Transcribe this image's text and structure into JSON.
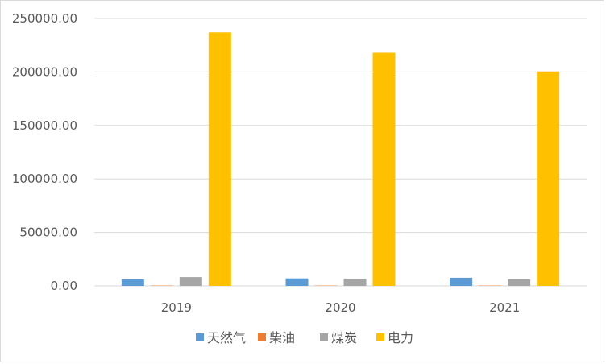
{
  "chart_data": {
    "type": "bar",
    "categories": [
      "2019",
      "2020",
      "2021"
    ],
    "series": [
      {
        "name": "天然气",
        "color": "#5b9bd5",
        "values": [
          6200,
          7000,
          7600
        ]
      },
      {
        "name": "柴油",
        "color": "#ed7d31",
        "values": [
          300,
          300,
          300
        ]
      },
      {
        "name": "煤炭",
        "color": "#a5a5a5",
        "values": [
          8200,
          6800,
          6200
        ]
      },
      {
        "name": "电力",
        "color": "#ffc000",
        "values": [
          237000,
          218000,
          200500
        ]
      }
    ],
    "ylim": [
      0,
      250000
    ],
    "yticks": [
      "0.00",
      "50000.00",
      "100000.00",
      "150000.00",
      "200000.00",
      "250000.00"
    ],
    "ytick_values": [
      0,
      50000,
      100000,
      150000,
      200000,
      250000
    ],
    "grid": true,
    "legend_position": "bottom",
    "title": "",
    "xlabel": "",
    "ylabel": ""
  }
}
